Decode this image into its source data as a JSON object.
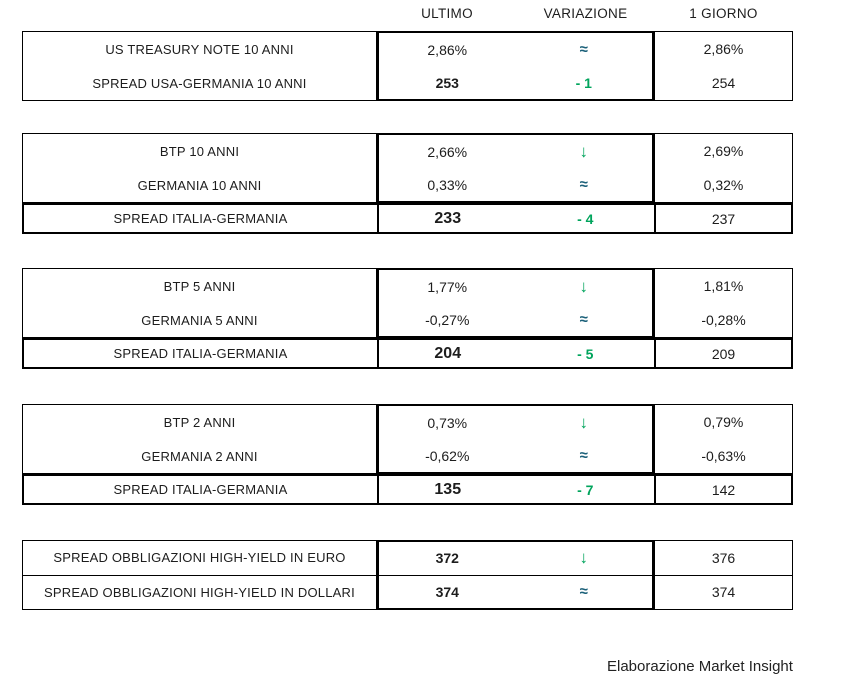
{
  "header": {
    "ultimo": "ULTIMO",
    "variazione": "VARIAZIONE",
    "giorno": "1 GIORNO"
  },
  "colors": {
    "green": "#00a45c",
    "teal": "#1b6079",
    "border": "#000000",
    "text": "#1d1d1d"
  },
  "groups": [
    {
      "rows": [
        {
          "label": "US TREASURY NOTE 10 ANNI",
          "ultimo": "2,86%",
          "variazione": "≈",
          "giorno": "2,86%"
        },
        {
          "label": "SPREAD USA-GERMANIA 10 ANNI",
          "ultimo": "253",
          "variazione": "- 1",
          "giorno": "254"
        }
      ]
    },
    {
      "rows": [
        {
          "label": "BTP 10 ANNI",
          "ultimo": "2,66%",
          "variazione": "↓",
          "giorno": "2,69%"
        },
        {
          "label": "GERMANIA 10 ANNI",
          "ultimo": "0,33%",
          "variazione": "≈",
          "giorno": "0,32%"
        }
      ],
      "spread": {
        "label": "SPREAD ITALIA-GERMANIA",
        "ultimo": "233",
        "variazione": "- 4",
        "giorno": "237"
      }
    },
    {
      "rows": [
        {
          "label": "BTP 5 ANNI",
          "ultimo": "1,77%",
          "variazione": "↓",
          "giorno": "1,81%"
        },
        {
          "label": "GERMANIA 5 ANNI",
          "ultimo": "-0,27%",
          "variazione": "≈",
          "giorno": "-0,28%"
        }
      ],
      "spread": {
        "label": "SPREAD ITALIA-GERMANIA",
        "ultimo": "204",
        "variazione": "- 5",
        "giorno": "209"
      }
    },
    {
      "rows": [
        {
          "label": "BTP 2 ANNI",
          "ultimo": "0,73%",
          "variazione": "↓",
          "giorno": "0,79%"
        },
        {
          "label": "GERMANIA 2 ANNI",
          "ultimo": "-0,62%",
          "variazione": "≈",
          "giorno": "-0,63%"
        }
      ],
      "spread": {
        "label": "SPREAD ITALIA-GERMANIA",
        "ultimo": "135",
        "variazione": "- 7",
        "giorno": "142"
      }
    },
    {
      "rows": [
        {
          "label": "SPREAD OBBLIGAZIONI HIGH-YIELD IN EURO",
          "ultimo": "372",
          "variazione": "↓",
          "giorno": "376"
        },
        {
          "label": "SPREAD OBBLIGAZIONI HIGH-YIELD IN DOLLARI",
          "ultimo": "374",
          "variazione": "≈",
          "giorno": "374"
        }
      ]
    }
  ],
  "footer": {
    "credit": "Elaborazione Market Insight"
  }
}
